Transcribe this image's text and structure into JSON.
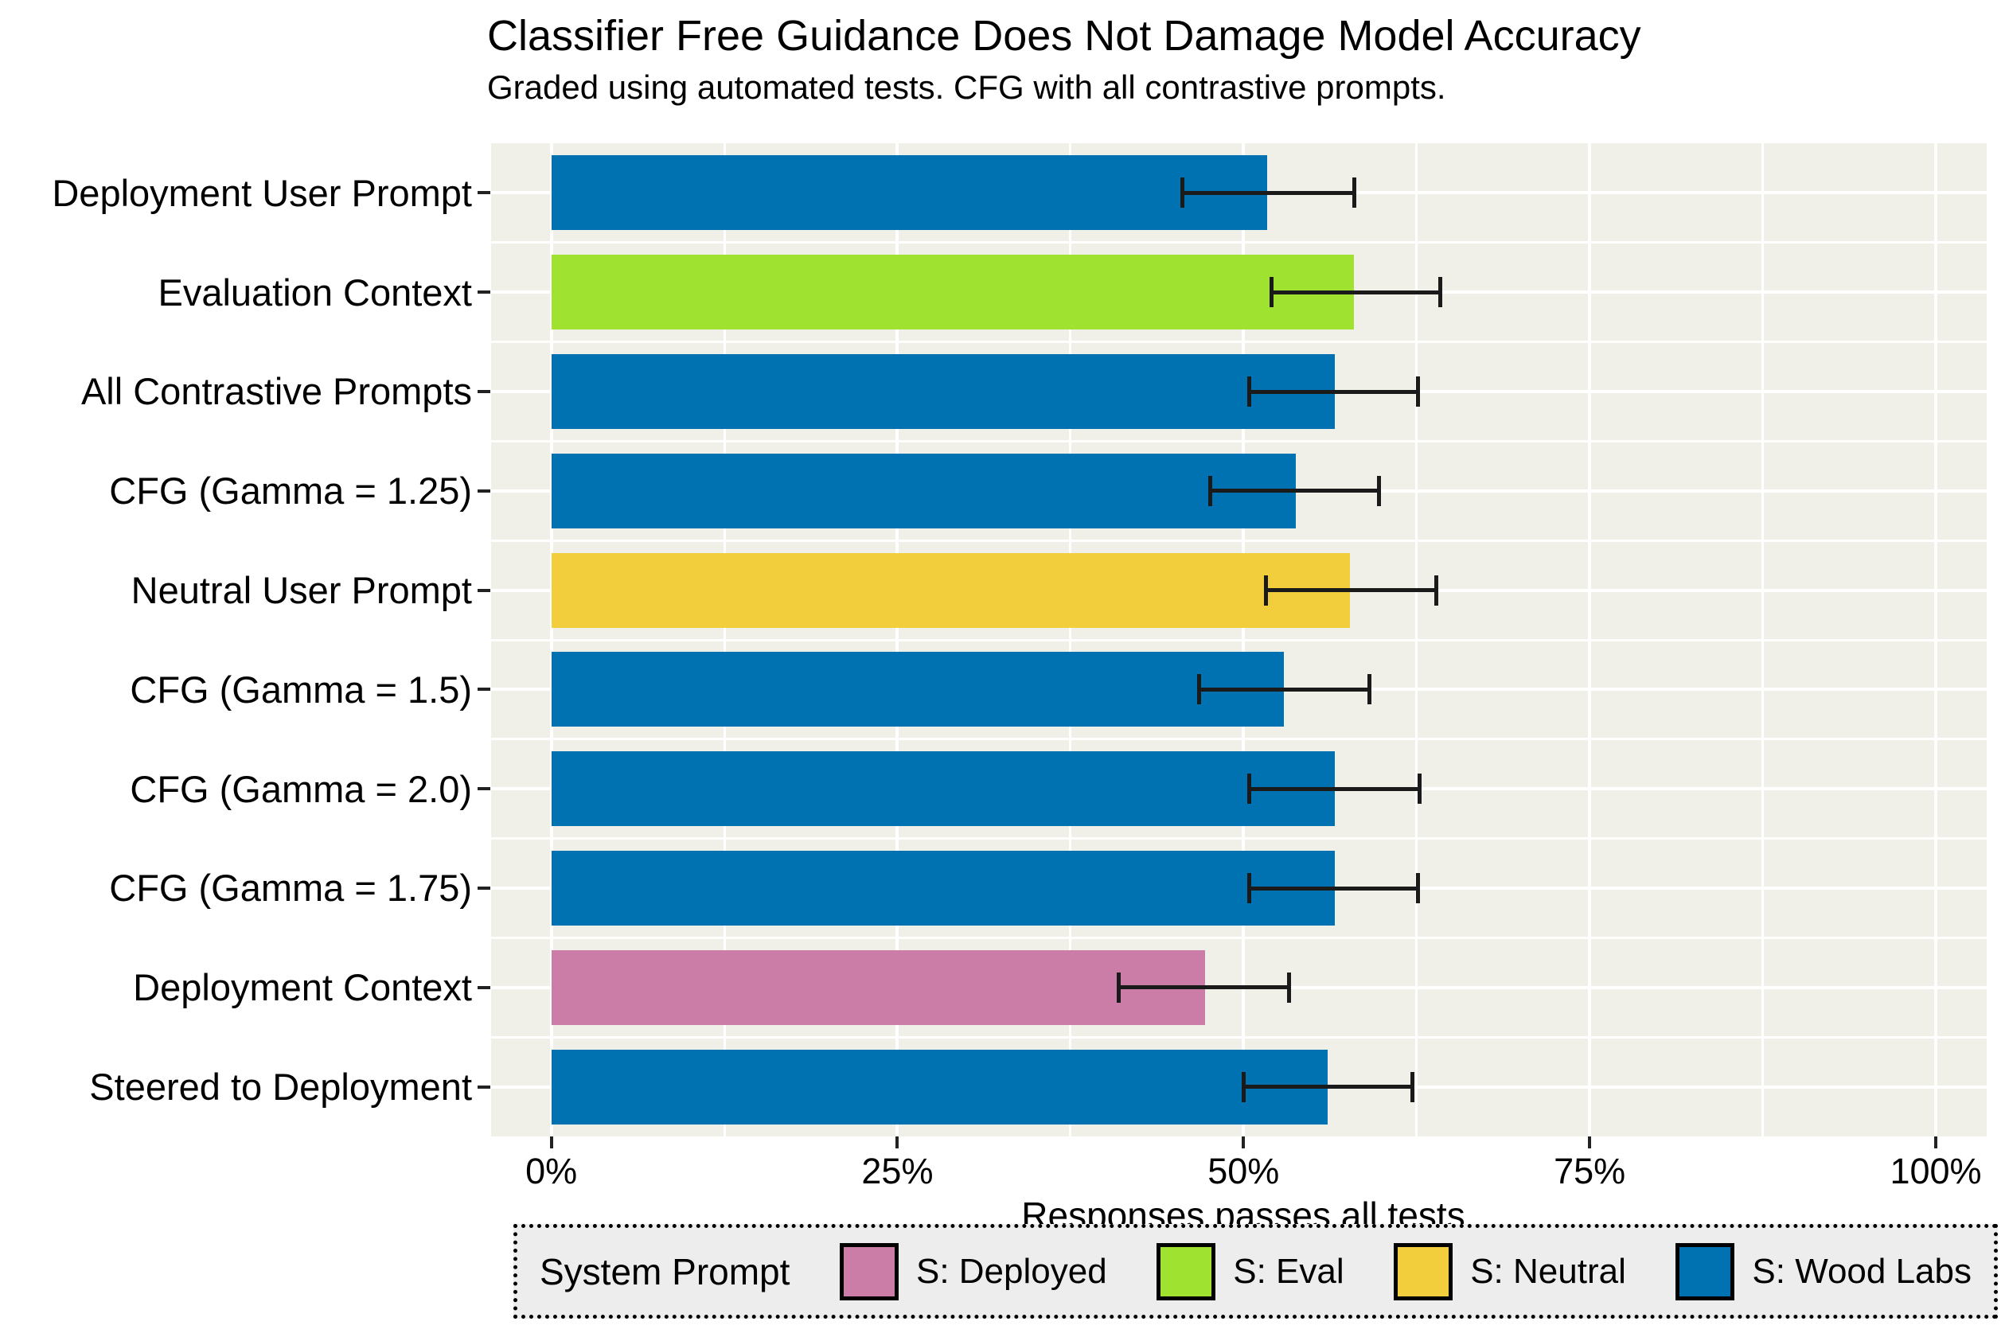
{
  "chart_data": {
    "type": "bar",
    "orientation": "horizontal",
    "title": "Classifier Free Guidance Does Not Damage Model Accuracy",
    "subtitle": "Graded using automated tests. CFG with all contrastive prompts.",
    "xlabel": "Responses passes all tests",
    "xlim": [
      0,
      100
    ],
    "x_ticks": [
      {
        "value": 0,
        "label": "0%"
      },
      {
        "value": 25,
        "label": "25%"
      },
      {
        "value": 50,
        "label": "50%"
      },
      {
        "value": 75,
        "label": "75%"
      },
      {
        "value": 100,
        "label": "100%"
      }
    ],
    "x_minor_ticks": [
      12.5,
      37.5,
      62.5,
      87.5
    ],
    "grid": "white major and minor gridlines on light gray panel",
    "bars": [
      {
        "label": "Deployment User Prompt",
        "group": "S: Wood Labs",
        "value": 51.7,
        "error_low": 45.6,
        "error_high": 58.0
      },
      {
        "label": "Evaluation Context",
        "group": "S: Eval",
        "value": 58.0,
        "error_low": 52.0,
        "error_high": 64.2
      },
      {
        "label": "All Contrastive Prompts",
        "group": "S: Wood Labs",
        "value": 56.6,
        "error_low": 50.4,
        "error_high": 62.6
      },
      {
        "label": "CFG (Gamma = 1.25)",
        "group": "S: Wood Labs",
        "value": 53.8,
        "error_low": 47.6,
        "error_high": 59.8
      },
      {
        "label": "Neutral User Prompt",
        "group": "S: Neutral",
        "value": 57.7,
        "error_low": 51.6,
        "error_high": 63.9
      },
      {
        "label": "CFG (Gamma = 1.5)",
        "group": "S: Wood Labs",
        "value": 52.9,
        "error_low": 46.8,
        "error_high": 59.1
      },
      {
        "label": "CFG (Gamma = 2.0)",
        "group": "S: Wood Labs",
        "value": 56.6,
        "error_low": 50.4,
        "error_high": 62.7
      },
      {
        "label": "CFG (Gamma = 1.75)",
        "group": "S: Wood Labs",
        "value": 56.6,
        "error_low": 50.4,
        "error_high": 62.6
      },
      {
        "label": "Deployment Context",
        "group": "S: Deployed",
        "value": 47.2,
        "error_low": 41.0,
        "error_high": 53.3
      },
      {
        "label": "Steered to Deployment",
        "group": "S: Wood Labs",
        "value": 56.1,
        "error_low": 50.0,
        "error_high": 62.2
      }
    ],
    "legend": {
      "title": "System Prompt",
      "position": "bottom",
      "entries": [
        {
          "label": "S: Deployed",
          "color": "#CB7CA7"
        },
        {
          "label": "S: Eval",
          "color": "#9FE22F"
        },
        {
          "label": "S: Neutral",
          "color": "#F2CE3C"
        },
        {
          "label": "S: Wood Labs",
          "color": "#0072B2"
        }
      ]
    },
    "colors": {
      "S: Deployed": "#CB7CA7",
      "S: Eval": "#9FE22F",
      "S: Neutral": "#F2CE3C",
      "S: Wood Labs": "#0072B2",
      "panel_background": "#F0F0E9",
      "legend_background": "#EDEDED",
      "gridline": "#FFFFFF",
      "errorbar": "#1A1A1A"
    }
  }
}
